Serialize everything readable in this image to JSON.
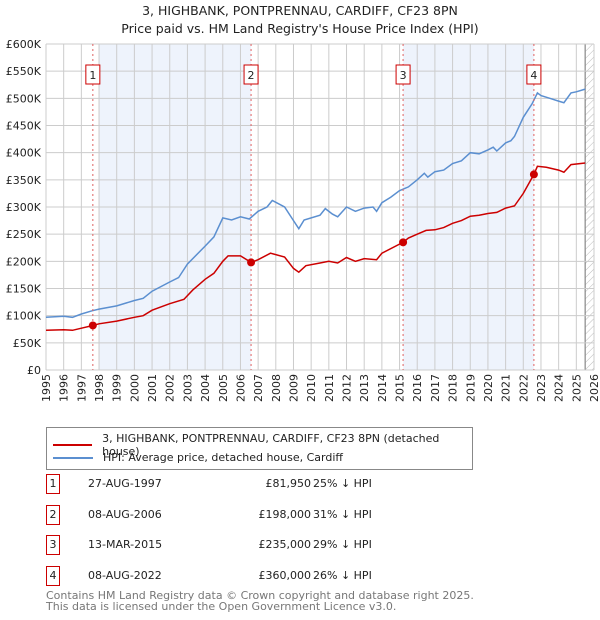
{
  "chart_data": {
    "type": "line",
    "title": "3, HIGHBANK, PONTPRENNAU, CARDIFF, CF23 8PN",
    "subtitle": "Price paid vs. HM Land Registry's House Price Index (HPI)",
    "xlim": [
      1995,
      2026
    ],
    "ylim": [
      0,
      600000
    ],
    "yticks": [
      {
        "v": 0,
        "label": "£0"
      },
      {
        "v": 50000,
        "label": "£50K"
      },
      {
        "v": 100000,
        "label": "£100K"
      },
      {
        "v": 150000,
        "label": "£150K"
      },
      {
        "v": 200000,
        "label": "£200K"
      },
      {
        "v": 250000,
        "label": "£250K"
      },
      {
        "v": 300000,
        "label": "£300K"
      },
      {
        "v": 350000,
        "label": "£350K"
      },
      {
        "v": 400000,
        "label": "£400K"
      },
      {
        "v": 450000,
        "label": "£450K"
      },
      {
        "v": 500000,
        "label": "£500K"
      },
      {
        "v": 550000,
        "label": "£550K"
      },
      {
        "v": 600000,
        "label": "£600K"
      }
    ],
    "xticks": [
      "1995",
      "1996",
      "1997",
      "1998",
      "1999",
      "2000",
      "2001",
      "2002",
      "2003",
      "2004",
      "2005",
      "2006",
      "2007",
      "2008",
      "2009",
      "2010",
      "2011",
      "2012",
      "2013",
      "2014",
      "2015",
      "2016",
      "2017",
      "2018",
      "2019",
      "2020",
      "2021",
      "2022",
      "2023",
      "2024",
      "2025",
      "2026"
    ],
    "grid": true,
    "shaded_ranges": [
      [
        1998,
        2006.6
      ],
      [
        2015.2,
        2022.6
      ]
    ],
    "hatched_range": [
      2025.5,
      2026
    ],
    "series": [
      {
        "name": "3, HIGHBANK, PONTPRENNAU, CARDIFF, CF23 8PN (detached house)",
        "color": "#cc0000",
        "x": [
          1995,
          1996,
          1996.5,
          1997,
          1997.65,
          1998,
          1999,
          2000,
          2000.5,
          2001,
          2002,
          2002.8,
          2003.3,
          2004,
          2004.5,
          2005,
          2005.3,
          2006,
          2006.6,
          2007,
          2007.7,
          2008.5,
          2009,
          2009.3,
          2009.7,
          2010.5,
          2011,
          2011.5,
          2012,
          2012.5,
          2013,
          2013.7,
          2014,
          2015.2,
          2015.5,
          2016,
          2016.5,
          2017,
          2017.5,
          2018,
          2018.5,
          2019,
          2019.5,
          2020,
          2020.5,
          2021,
          2021.5,
          2022,
          2022.6,
          2022.8,
          2023.3,
          2024,
          2024.3,
          2024.7,
          2025.5
        ],
        "y": [
          73000,
          74000,
          73000,
          77000,
          81950,
          85000,
          90000,
          97000,
          100000,
          110000,
          122000,
          130000,
          147000,
          167000,
          178000,
          200000,
          210000,
          210000,
          198000,
          203000,
          215000,
          208000,
          187000,
          180000,
          192000,
          197000,
          200000,
          197000,
          207000,
          200000,
          205000,
          203000,
          215000,
          235000,
          243000,
          250000,
          257000,
          258000,
          262000,
          270000,
          275000,
          283000,
          285000,
          288000,
          290000,
          298000,
          302000,
          325000,
          360000,
          375000,
          373000,
          368000,
          364000,
          378000,
          381000
        ]
      },
      {
        "name": "HPI: Average price, detached house, Cardiff",
        "color": "#5b8fd0",
        "x": [
          1995,
          1996,
          1996.5,
          1997,
          1997.6,
          1998,
          1999,
          2000,
          2000.5,
          2001,
          2002,
          2002.5,
          2003,
          2004,
          2004.5,
          2005,
          2005.5,
          2006,
          2006.5,
          2007,
          2007.5,
          2007.8,
          2008.5,
          2009,
          2009.3,
          2009.6,
          2010.5,
          2010.8,
          2011.2,
          2011.5,
          2012,
          2012.5,
          2013,
          2013.5,
          2013.7,
          2014,
          2014.5,
          2015,
          2015.5,
          2016,
          2016.4,
          2016.6,
          2017,
          2017.5,
          2018,
          2018.5,
          2019,
          2019.5,
          2020,
          2020.3,
          2020.5,
          2021,
          2021.3,
          2021.5,
          2022,
          2022.5,
          2022.8,
          2023,
          2023.5,
          2024,
          2024.3,
          2024.7,
          2025,
          2025.5
        ],
        "y": [
          97000,
          99000,
          97000,
          103000,
          109000,
          112000,
          118000,
          128000,
          132000,
          145000,
          162000,
          170000,
          195000,
          228000,
          245000,
          280000,
          276000,
          282000,
          278000,
          292000,
          300000,
          312000,
          300000,
          275000,
          260000,
          276000,
          285000,
          297000,
          287000,
          282000,
          300000,
          292000,
          298000,
          300000,
          292000,
          308000,
          318000,
          330000,
          337000,
          350000,
          362000,
          355000,
          365000,
          368000,
          380000,
          385000,
          400000,
          398000,
          405000,
          410000,
          403000,
          418000,
          422000,
          430000,
          465000,
          490000,
          510000,
          505000,
          500000,
          495000,
          492000,
          510000,
          512000,
          517000
        ]
      }
    ],
    "sales": [
      {
        "label": "1",
        "x": 1997.65,
        "y": 81950,
        "date": "27-AUG-1997",
        "price": "£81,950",
        "hpi": "25% ↓ HPI"
      },
      {
        "label": "2",
        "x": 2006.6,
        "y": 198000,
        "date": "08-AUG-2006",
        "price": "£198,000",
        "hpi": "31% ↓ HPI"
      },
      {
        "label": "3",
        "x": 2015.2,
        "y": 235000,
        "date": "13-MAR-2015",
        "price": "£235,000",
        "hpi": "29% ↓ HPI"
      },
      {
        "label": "4",
        "x": 2022.6,
        "y": 360000,
        "date": "08-AUG-2022",
        "price": "£360,000",
        "hpi": "26% ↓ HPI"
      }
    ]
  },
  "legend": {
    "red": "3, HIGHBANK, PONTPRENNAU, CARDIFF, CF23 8PN (detached house)",
    "blue": "HPI: Average price, detached house, Cardiff"
  },
  "footer": {
    "line1": "Contains HM Land Registry data © Crown copyright and database right 2025.",
    "line2": "This data is licensed under the Open Government Licence v3.0."
  }
}
